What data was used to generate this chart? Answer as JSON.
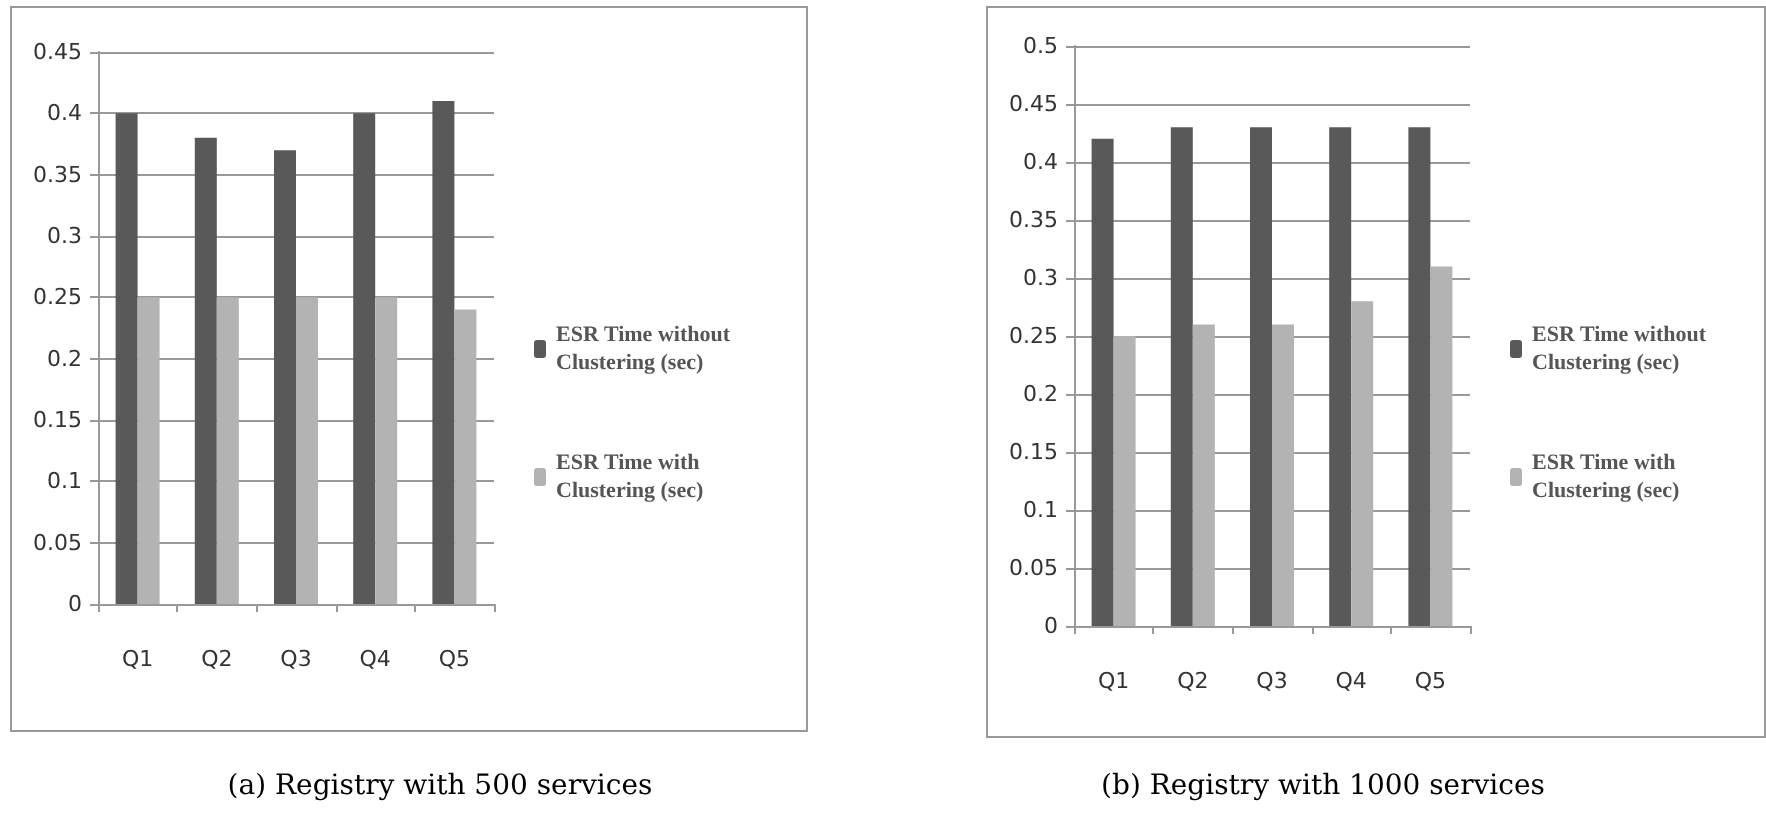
{
  "chart_data": [
    {
      "type": "bar",
      "title": "(a) Registry with 500 services",
      "categories": [
        "Q1",
        "Q2",
        "Q3",
        "Q4",
        "Q5"
      ],
      "series": [
        {
          "name": "ESR Time without Clustering (sec)",
          "color": "#595959",
          "values": [
            0.4,
            0.38,
            0.37,
            0.4,
            0.41
          ]
        },
        {
          "name": "ESR Time with Clustering (sec)",
          "color": "#b3b3b3",
          "values": [
            0.25,
            0.25,
            0.25,
            0.25,
            0.24
          ]
        }
      ],
      "ylim": [
        0,
        0.45
      ],
      "yticks": [
        0,
        0.05,
        0.1,
        0.15,
        0.2,
        0.25,
        0.3,
        0.35,
        0.4,
        0.45
      ],
      "grid": "y",
      "legend": "right"
    },
    {
      "type": "bar",
      "title": "(b) Registry with 1000 services",
      "categories": [
        "Q1",
        "Q2",
        "Q3",
        "Q4",
        "Q5"
      ],
      "series": [
        {
          "name": "ESR Time without Clustering (sec)",
          "color": "#595959",
          "values": [
            0.42,
            0.43,
            0.43,
            0.43,
            0.43
          ]
        },
        {
          "name": "ESR Time with Clustering (sec)",
          "color": "#b3b3b3",
          "values": [
            0.25,
            0.26,
            0.26,
            0.28,
            0.31
          ]
        }
      ],
      "ylim": [
        0,
        0.5
      ],
      "yticks": [
        0,
        0.05,
        0.1,
        0.15,
        0.2,
        0.25,
        0.3,
        0.35,
        0.4,
        0.45,
        0.5
      ],
      "grid": "y",
      "legend": "right"
    }
  ]
}
